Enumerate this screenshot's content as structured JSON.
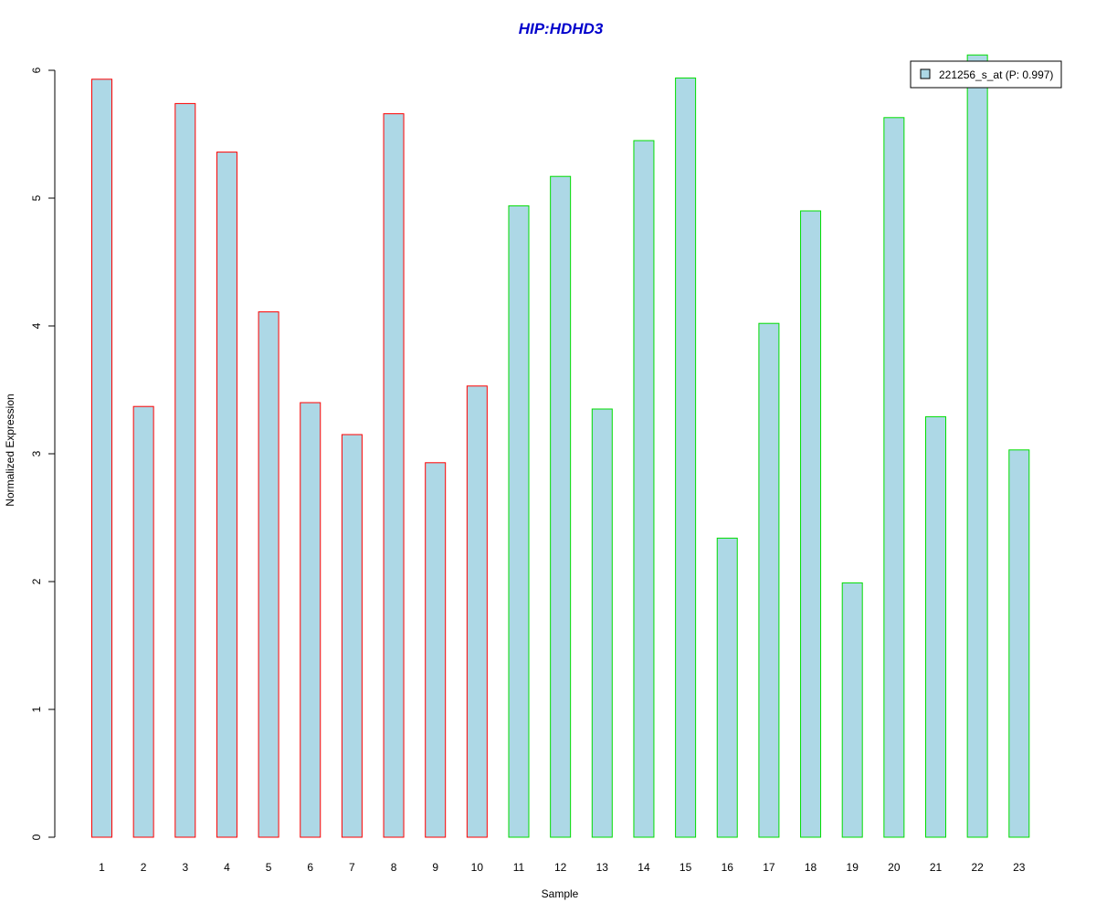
{
  "chart_data": {
    "type": "bar",
    "title": "HIP:HDHD3",
    "xlabel": "Sample",
    "ylabel": "Normalized Expression",
    "ylim": [
      0,
      6
    ],
    "yticks": [
      "0",
      "1",
      "2",
      "3",
      "4",
      "5",
      "6"
    ],
    "categories": [
      "1",
      "2",
      "3",
      "4",
      "5",
      "6",
      "7",
      "8",
      "9",
      "10",
      "11",
      "12",
      "13",
      "14",
      "15",
      "16",
      "17",
      "18",
      "19",
      "20",
      "21",
      "22",
      "23"
    ],
    "values": [
      5.93,
      3.37,
      5.74,
      5.36,
      4.11,
      3.4,
      3.15,
      5.66,
      2.93,
      3.53,
      4.94,
      5.17,
      3.35,
      5.45,
      5.94,
      2.34,
      4.02,
      4.9,
      1.99,
      5.63,
      3.29,
      6.12,
      3.03
    ],
    "groups": [
      "a",
      "a",
      "a",
      "a",
      "a",
      "a",
      "a",
      "a",
      "a",
      "a",
      "b",
      "b",
      "b",
      "b",
      "b",
      "b",
      "b",
      "b",
      "b",
      "b",
      "b",
      "b",
      "b"
    ],
    "colors": {
      "fill": "#add8e6",
      "group_a_border": "#ff0000",
      "group_b_border": "#00dd00",
      "title": "#0000cc"
    },
    "legend": {
      "label": "221256_s_at (P: 0.997)",
      "placement": "top-right"
    },
    "grid": false
  }
}
